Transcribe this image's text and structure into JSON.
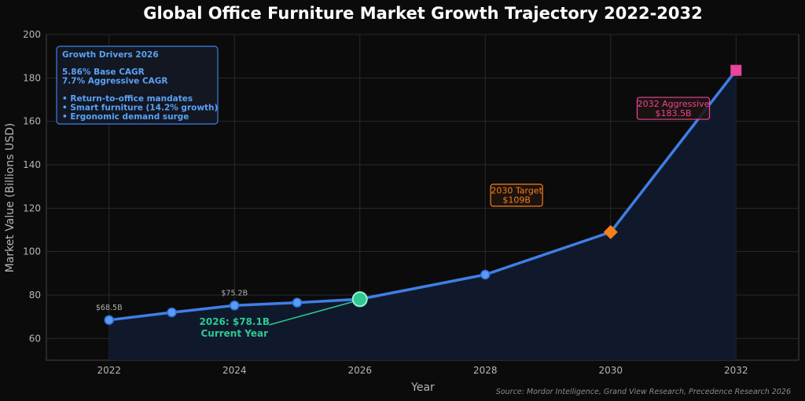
{
  "chart_data": {
    "type": "line",
    "title": "Global Office Furniture Market Growth Trajectory 2022-2032",
    "xlabel": "Year",
    "ylabel": "Market Value (Billions USD)",
    "xlim": [
      2021,
      2033
    ],
    "ylim": [
      50,
      200
    ],
    "x_ticks": [
      2022,
      2024,
      2026,
      2028,
      2030,
      2032
    ],
    "y_ticks": [
      60,
      80,
      100,
      120,
      140,
      160,
      180,
      200
    ],
    "grid": true,
    "series": [
      {
        "x": [
          2022,
          2023,
          2024,
          2025,
          2026,
          2028,
          2030,
          2032
        ],
        "y": [
          68.5,
          72.0,
          75.2,
          76.5,
          78.1,
          89.4,
          109.0,
          183.5
        ]
      }
    ],
    "data_labels": [
      {
        "x": 2022,
        "text": "$68.5B"
      },
      {
        "x": 2024,
        "text": "$75.2B"
      }
    ],
    "highlights": [
      {
        "x": 2026,
        "y": 78.1,
        "marker": "circle",
        "color": "#2ec991"
      },
      {
        "x": 2030,
        "y": 109.0,
        "marker": "diamond",
        "color": "#f77f1a"
      },
      {
        "x": 2032,
        "y": 183.5,
        "marker": "square",
        "color": "#e8469a"
      }
    ],
    "annotations": {
      "current_year": {
        "line1": "2026: $78.1B",
        "line2": "Current Year",
        "x": 2026,
        "y": 78.1,
        "text_x": 2024,
        "text_y": 67
      },
      "target_2030": {
        "line1": "2030 Target",
        "line2": "$109B",
        "color": "#f77f1a",
        "x": 2028.5,
        "y": 126
      },
      "aggressive_2032": {
        "line1": "2032 Aggressive",
        "line2": "$183.5B",
        "color": "#e8469a",
        "x": 2031.0,
        "y": 166
      }
    },
    "drivers_box": {
      "title": "Growth Drivers 2026",
      "lines": [
        "5.86% Base CAGR",
        "7.7% Aggressive CAGR"
      ],
      "bullets": [
        "• Return-to-office mandates",
        "• Smart furniture (14.2% growth)",
        "• Ergonomic demand surge"
      ]
    },
    "source": "Source: Mordor Intelligence, Grand View Research, Precedence Research 2026",
    "colors": {
      "line": "#3f7fe6",
      "marker": "#5a9bf6",
      "fill": "#111a2e",
      "grid": "#2a2a2a",
      "axis": "#555555"
    }
  }
}
